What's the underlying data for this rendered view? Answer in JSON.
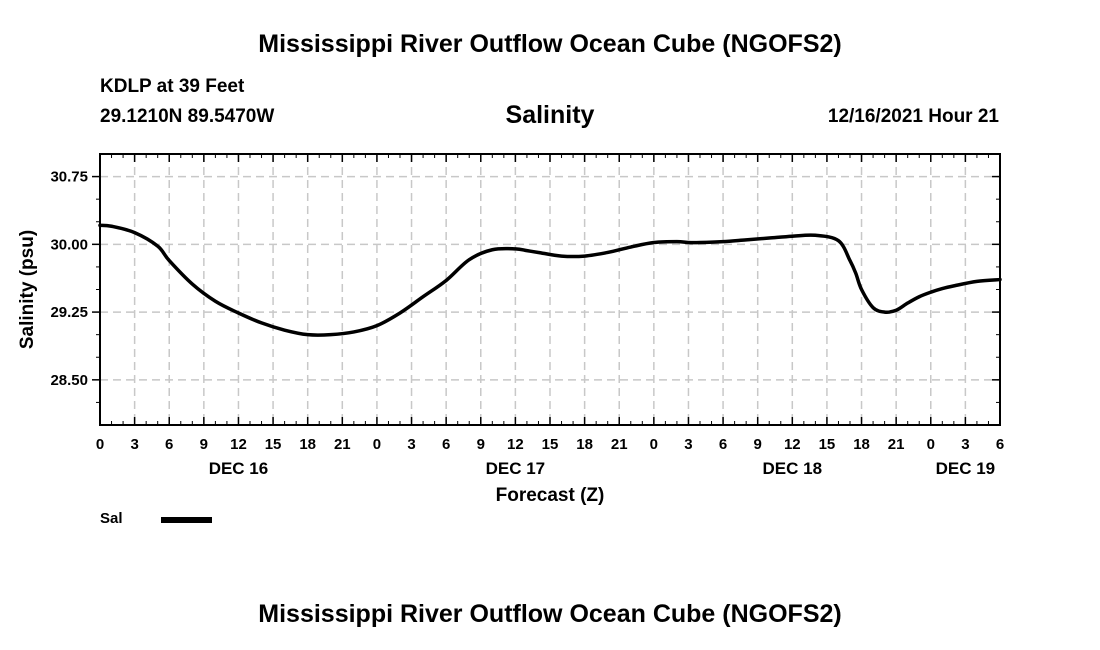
{
  "page": {
    "main_title": "Mississippi River Outflow Ocean Cube (NGOFS2)",
    "footer_title": "Mississippi River Outflow Ocean Cube (NGOFS2)",
    "station_line": "KDLP at 39 Feet",
    "coords_line": "29.1210N  89.5470W",
    "variable_title": "Salinity",
    "datetime_label": "12/16/2021 Hour 21"
  },
  "legend": {
    "label": "Sal",
    "color": "#000000"
  },
  "chart_data": {
    "type": "line",
    "title": "Salinity",
    "xlabel": "Forecast (Z)",
    "ylabel": "Salinity (psu)",
    "x_unit": "forecast hour",
    "xlim": [
      0,
      78
    ],
    "ylim": [
      28.0,
      31.0
    ],
    "y_ticks": [
      {
        "value": 28.5,
        "label": "28.50"
      },
      {
        "value": 29.25,
        "label": "29.25"
      },
      {
        "value": 30.0,
        "label": "30.00"
      },
      {
        "value": 30.75,
        "label": "30.75"
      }
    ],
    "x_tick_labels": [
      "0",
      "3",
      "6",
      "9",
      "12",
      "15",
      "18",
      "21",
      "0",
      "3",
      "6",
      "9",
      "12",
      "15",
      "18",
      "21",
      "0",
      "3",
      "6",
      "9",
      "12",
      "15",
      "18",
      "21",
      "0",
      "3",
      "6"
    ],
    "day_labels": [
      {
        "label": "DEC 16",
        "hour": 12
      },
      {
        "label": "DEC 17",
        "hour": 36
      },
      {
        "label": "DEC 18",
        "hour": 60
      },
      {
        "label": "DEC 19",
        "hour": 75
      }
    ],
    "grid": true,
    "series": [
      {
        "name": "Sal",
        "color": "#000000",
        "x": [
          0,
          1,
          3,
          5,
          6,
          8,
          10,
          12,
          14,
          16,
          18,
          20,
          22,
          24,
          26,
          28,
          30,
          32,
          34,
          36,
          37,
          38,
          40,
          42,
          44,
          46,
          48,
          50,
          51,
          52,
          54,
          56,
          58,
          60,
          62,
          64,
          65,
          65.5,
          66,
          67,
          68,
          69,
          70,
          71,
          72,
          73,
          74,
          76,
          78
        ],
        "y": [
          30.21,
          30.2,
          30.13,
          29.98,
          29.82,
          29.56,
          29.37,
          29.24,
          29.13,
          29.05,
          29.0,
          29.0,
          29.03,
          29.1,
          29.24,
          29.42,
          29.6,
          29.83,
          29.94,
          29.95,
          29.93,
          29.91,
          29.87,
          29.87,
          29.91,
          29.97,
          30.02,
          30.03,
          30.02,
          30.02,
          30.03,
          30.05,
          30.07,
          30.09,
          30.1,
          30.04,
          29.82,
          29.68,
          29.5,
          29.3,
          29.25,
          29.27,
          29.35,
          29.42,
          29.47,
          29.51,
          29.54,
          29.59,
          29.61
        ]
      }
    ]
  }
}
